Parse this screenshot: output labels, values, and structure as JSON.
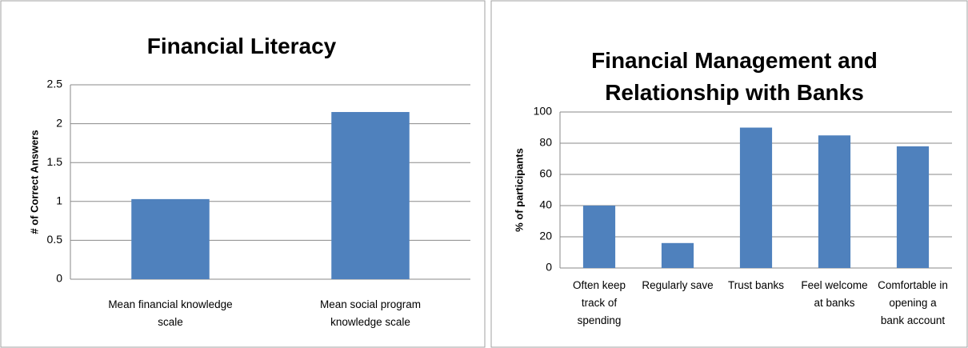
{
  "chart_data": [
    {
      "type": "bar",
      "title": "Financial Literacy",
      "y_label": "# of Correct Answers",
      "categories": [
        "Mean financial knowledge scale",
        "Mean social program knowledge scale"
      ],
      "values": [
        1.03,
        2.15
      ],
      "color": "#4f81bd",
      "ylim": [
        0,
        2.5
      ],
      "yticks": [
        0,
        0.5,
        1,
        1.5,
        2,
        2.5
      ],
      "grid": true
    },
    {
      "type": "bar",
      "title": "Financial Management and Relationship with Banks",
      "y_label": "% of participants",
      "categories": [
        "Often keep track of spending",
        "Regularly save",
        "Trust banks",
        "Feel welcome at banks",
        "Comfortable in opening a bank account"
      ],
      "values": [
        40,
        16,
        90,
        85,
        78
      ],
      "color": "#4f81bd",
      "ylim": [
        0,
        100
      ],
      "yticks": [
        0,
        20,
        40,
        60,
        80,
        100
      ],
      "grid": true
    }
  ]
}
